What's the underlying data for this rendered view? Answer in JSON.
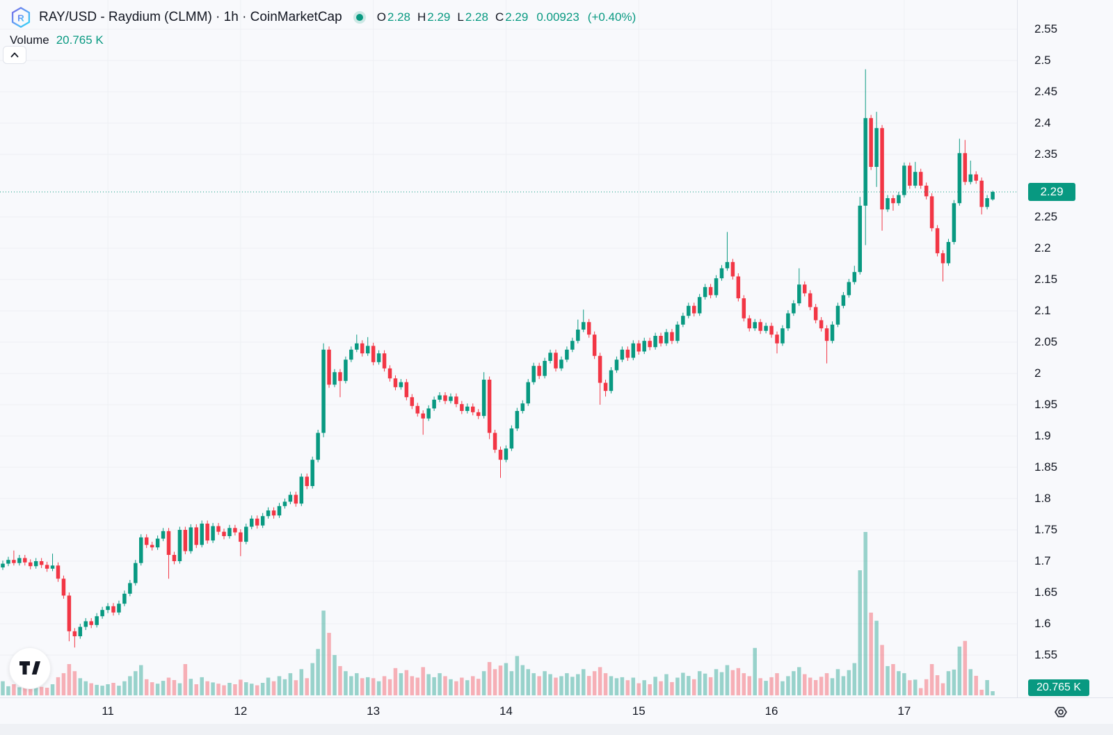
{
  "header": {
    "title": "RAY/USD - Raydium (CLMM) · 1h · CoinMarketCap",
    "ohlc": {
      "o_label": "O",
      "o_value": "2.28",
      "h_label": "H",
      "h_value": "2.29",
      "l_label": "L",
      "l_value": "2.28",
      "c_label": "C",
      "c_value": "2.29",
      "change_abs": "0.00923",
      "change_pct": "(+0.40%)"
    },
    "volume_label": "Volume",
    "volume_value": "20.765 K"
  },
  "price_axis": {
    "current_price_label": "2.29",
    "volume_badge_label": "20.765 K"
  },
  "chart_data": {
    "type": "candlestick",
    "symbol": "RAY/USD",
    "exchange": "Raydium (CLMM)",
    "interval": "1h",
    "source": "CoinMarketCap",
    "price_range": [
      1.55,
      2.55
    ],
    "current_price": 2.29,
    "grid": true,
    "colors": {
      "up": "#089981",
      "down": "#f23645",
      "volume_up": "rgba(8,153,129,0.40)",
      "volume_down": "rgba(242,54,69,0.38)",
      "badge": "#089981",
      "axis_text": "#131722"
    },
    "price_ticks": [
      {
        "label": "2.55",
        "value": 2.55
      },
      {
        "label": "2.5",
        "value": 2.5
      },
      {
        "label": "2.45",
        "value": 2.45
      },
      {
        "label": "2.4",
        "value": 2.4
      },
      {
        "label": "2.35",
        "value": 2.35
      },
      {
        "label": "2.25",
        "value": 2.25
      },
      {
        "label": "2.2",
        "value": 2.2
      },
      {
        "label": "2.15",
        "value": 2.15
      },
      {
        "label": "2.1",
        "value": 2.1
      },
      {
        "label": "2.05",
        "value": 2.05
      },
      {
        "label": "2",
        "value": 2.0
      },
      {
        "label": "1.95",
        "value": 1.95
      },
      {
        "label": "1.9",
        "value": 1.9
      },
      {
        "label": "1.85",
        "value": 1.85
      },
      {
        "label": "1.8",
        "value": 1.8
      },
      {
        "label": "1.75",
        "value": 1.75
      },
      {
        "label": "1.7",
        "value": 1.7
      },
      {
        "label": "1.65",
        "value": 1.65
      },
      {
        "label": "1.6",
        "value": 1.6
      },
      {
        "label": "1.55",
        "value": 1.55
      }
    ],
    "time_ticks": [
      {
        "label": "11",
        "index": 19
      },
      {
        "label": "12",
        "index": 43
      },
      {
        "label": "13",
        "index": 67
      },
      {
        "label": "14",
        "index": 91
      },
      {
        "label": "15",
        "index": 115
      },
      {
        "label": "16",
        "index": 139
      },
      {
        "label": "17",
        "index": 163
      }
    ],
    "volume_unit": "K",
    "last_bar_volume": 20.765,
    "candles_ohlcv": [
      [
        1.69,
        1.701,
        1.686,
        1.696,
        70
      ],
      [
        1.696,
        1.707,
        1.692,
        1.702,
        45
      ],
      [
        1.702,
        1.717,
        1.693,
        1.697,
        55
      ],
      [
        1.697,
        1.71,
        1.693,
        1.705,
        40
      ],
      [
        1.705,
        1.71,
        1.693,
        1.698,
        60
      ],
      [
        1.698,
        1.703,
        1.687,
        1.692,
        35
      ],
      [
        1.692,
        1.705,
        1.688,
        1.7,
        50
      ],
      [
        1.7,
        1.705,
        1.689,
        1.694,
        42
      ],
      [
        1.694,
        1.699,
        1.683,
        1.688,
        38
      ],
      [
        1.688,
        1.712,
        1.684,
        1.693,
        55
      ],
      [
        1.693,
        1.698,
        1.667,
        1.672,
        90
      ],
      [
        1.672,
        1.677,
        1.64,
        1.645,
        110
      ],
      [
        1.645,
        1.65,
        1.572,
        1.588,
        155
      ],
      [
        1.588,
        1.593,
        1.562,
        1.58,
        120
      ],
      [
        1.58,
        1.6,
        1.576,
        1.595,
        85
      ],
      [
        1.595,
        1.609,
        1.59,
        1.604,
        70
      ],
      [
        1.604,
        1.609,
        1.593,
        1.598,
        60
      ],
      [
        1.598,
        1.617,
        1.594,
        1.612,
        52
      ],
      [
        1.612,
        1.627,
        1.608,
        1.622,
        48
      ],
      [
        1.622,
        1.633,
        1.617,
        1.628,
        55
      ],
      [
        1.628,
        1.633,
        1.613,
        1.618,
        62
      ],
      [
        1.618,
        1.637,
        1.614,
        1.632,
        48
      ],
      [
        1.632,
        1.653,
        1.628,
        1.648,
        70
      ],
      [
        1.648,
        1.67,
        1.644,
        1.665,
        95
      ],
      [
        1.665,
        1.702,
        1.661,
        1.697,
        120
      ],
      [
        1.697,
        1.743,
        1.693,
        1.738,
        150
      ],
      [
        1.738,
        1.743,
        1.721,
        1.726,
        80
      ],
      [
        1.726,
        1.731,
        1.717,
        1.722,
        65
      ],
      [
        1.722,
        1.741,
        1.718,
        1.736,
        58
      ],
      [
        1.736,
        1.753,
        1.732,
        1.748,
        72
      ],
      [
        1.748,
        1.753,
        1.672,
        1.71,
        88
      ],
      [
        1.71,
        1.715,
        1.695,
        1.7,
        76
      ],
      [
        1.7,
        1.755,
        1.696,
        1.75,
        60
      ],
      [
        1.75,
        1.755,
        1.711,
        1.716,
        155
      ],
      [
        1.716,
        1.759,
        1.712,
        1.754,
        82
      ],
      [
        1.754,
        1.759,
        1.721,
        1.726,
        55
      ],
      [
        1.726,
        1.765,
        1.722,
        1.76,
        90
      ],
      [
        1.76,
        1.765,
        1.728,
        1.733,
        70
      ],
      [
        1.733,
        1.761,
        1.729,
        1.756,
        64
      ],
      [
        1.756,
        1.761,
        1.742,
        1.747,
        58
      ],
      [
        1.747,
        1.752,
        1.735,
        1.74,
        50
      ],
      [
        1.74,
        1.758,
        1.736,
        1.753,
        62
      ],
      [
        1.753,
        1.758,
        1.741,
        1.746,
        55
      ],
      [
        1.746,
        1.751,
        1.708,
        1.731,
        78
      ],
      [
        1.731,
        1.76,
        1.727,
        1.755,
        65
      ],
      [
        1.755,
        1.773,
        1.751,
        1.768,
        58
      ],
      [
        1.768,
        1.773,
        1.752,
        1.757,
        50
      ],
      [
        1.757,
        1.777,
        1.753,
        1.772,
        62
      ],
      [
        1.772,
        1.786,
        1.768,
        1.781,
        88
      ],
      [
        1.781,
        1.786,
        1.768,
        1.773,
        70
      ],
      [
        1.773,
        1.793,
        1.769,
        1.788,
        95
      ],
      [
        1.788,
        1.8,
        1.784,
        1.795,
        80
      ],
      [
        1.795,
        1.811,
        1.791,
        1.806,
        110
      ],
      [
        1.806,
        1.811,
        1.787,
        1.792,
        75
      ],
      [
        1.792,
        1.84,
        1.788,
        1.835,
        130
      ],
      [
        1.835,
        1.84,
        1.815,
        1.82,
        85
      ],
      [
        1.82,
        1.867,
        1.816,
        1.862,
        160
      ],
      [
        1.862,
        1.91,
        1.858,
        1.905,
        230
      ],
      [
        1.905,
        2.048,
        1.898,
        2.038,
        420
      ],
      [
        2.038,
        2.043,
        1.977,
        1.982,
        310
      ],
      [
        1.982,
        2.007,
        1.978,
        2.002,
        200
      ],
      [
        2.002,
        2.007,
        1.962,
        1.988,
        145
      ],
      [
        1.988,
        2.027,
        1.984,
        2.022,
        120
      ],
      [
        2.022,
        2.043,
        2.018,
        2.038,
        95
      ],
      [
        2.038,
        2.062,
        2.034,
        2.048,
        110
      ],
      [
        2.048,
        2.053,
        2.027,
        2.032,
        85
      ],
      [
        2.032,
        2.058,
        2.028,
        2.044,
        90
      ],
      [
        2.044,
        2.049,
        2.013,
        2.018,
        85
      ],
      [
        2.018,
        2.037,
        2.014,
        2.032,
        70
      ],
      [
        2.032,
        2.037,
        2.003,
        2.008,
        95
      ],
      [
        2.008,
        2.013,
        1.987,
        1.992,
        80
      ],
      [
        1.992,
        1.997,
        1.973,
        1.978,
        135
      ],
      [
        1.978,
        1.991,
        1.974,
        1.986,
        110
      ],
      [
        1.986,
        1.991,
        1.957,
        1.962,
        125
      ],
      [
        1.962,
        1.967,
        1.943,
        1.948,
        95
      ],
      [
        1.948,
        1.953,
        1.931,
        1.936,
        88
      ],
      [
        1.936,
        1.941,
        1.902,
        1.928,
        140
      ],
      [
        1.928,
        1.949,
        1.924,
        1.944,
        105
      ],
      [
        1.944,
        1.963,
        1.94,
        1.958,
        90
      ],
      [
        1.958,
        1.97,
        1.954,
        1.965,
        110
      ],
      [
        1.965,
        1.97,
        1.951,
        1.956,
        95
      ],
      [
        1.956,
        1.968,
        1.952,
        1.963,
        80
      ],
      [
        1.963,
        1.968,
        1.946,
        1.951,
        70
      ],
      [
        1.951,
        1.956,
        1.935,
        1.94,
        88
      ],
      [
        1.94,
        1.952,
        1.936,
        1.947,
        75
      ],
      [
        1.947,
        1.952,
        1.933,
        1.938,
        95
      ],
      [
        1.938,
        1.943,
        1.927,
        1.932,
        82
      ],
      [
        1.932,
        2.002,
        1.928,
        1.99,
        120
      ],
      [
        1.99,
        1.995,
        1.895,
        1.905,
        165
      ],
      [
        1.905,
        1.91,
        1.873,
        1.878,
        130
      ],
      [
        1.878,
        1.883,
        1.833,
        1.862,
        148
      ],
      [
        1.862,
        1.885,
        1.858,
        1.88,
        160
      ],
      [
        1.88,
        1.917,
        1.876,
        1.912,
        120
      ],
      [
        1.912,
        1.945,
        1.908,
        1.94,
        195
      ],
      [
        1.94,
        1.957,
        1.936,
        1.952,
        150
      ],
      [
        1.952,
        1.991,
        1.948,
        1.986,
        130
      ],
      [
        1.986,
        2.017,
        1.982,
        2.012,
        110
      ],
      [
        2.012,
        2.017,
        1.991,
        1.996,
        95
      ],
      [
        1.996,
        2.025,
        1.992,
        2.02,
        120
      ],
      [
        2.02,
        2.038,
        2.016,
        2.033,
        105
      ],
      [
        2.033,
        2.038,
        2.003,
        2.008,
        88
      ],
      [
        2.008,
        2.027,
        2.004,
        2.022,
        95
      ],
      [
        2.022,
        2.043,
        2.018,
        2.038,
        110
      ],
      [
        2.038,
        2.057,
        2.034,
        2.052,
        92
      ],
      [
        2.052,
        2.086,
        2.048,
        2.07,
        105
      ],
      [
        2.07,
        2.102,
        2.066,
        2.082,
        130
      ],
      [
        2.082,
        2.087,
        2.057,
        2.062,
        96
      ],
      [
        2.062,
        2.067,
        2.023,
        2.028,
        120
      ],
      [
        2.028,
        2.033,
        1.95,
        1.985,
        140
      ],
      [
        1.985,
        1.99,
        1.963,
        1.972,
        110
      ],
      [
        1.972,
        2.01,
        1.968,
        2.005,
        95
      ],
      [
        2.005,
        2.027,
        2.001,
        2.022,
        85
      ],
      [
        2.022,
        2.043,
        2.018,
        2.038,
        90
      ],
      [
        2.038,
        2.043,
        2.02,
        2.025,
        75
      ],
      [
        2.025,
        2.053,
        2.021,
        2.048,
        88
      ],
      [
        2.048,
        2.053,
        2.03,
        2.035,
        60
      ],
      [
        2.035,
        2.057,
        2.031,
        2.052,
        75
      ],
      [
        2.052,
        2.057,
        2.037,
        2.042,
        55
      ],
      [
        2.042,
        2.065,
        2.038,
        2.06,
        92
      ],
      [
        2.06,
        2.065,
        2.043,
        2.048,
        70
      ],
      [
        2.048,
        2.071,
        2.044,
        2.066,
        105
      ],
      [
        2.066,
        2.071,
        2.047,
        2.052,
        66
      ],
      [
        2.052,
        2.083,
        2.048,
        2.078,
        88
      ],
      [
        2.078,
        2.097,
        2.074,
        2.092,
        112
      ],
      [
        2.092,
        2.113,
        2.088,
        2.108,
        96
      ],
      [
        2.108,
        2.113,
        2.091,
        2.096,
        80
      ],
      [
        2.096,
        2.127,
        2.092,
        2.122,
        120
      ],
      [
        2.122,
        2.143,
        2.118,
        2.138,
        108
      ],
      [
        2.138,
        2.143,
        2.12,
        2.125,
        90
      ],
      [
        2.125,
        2.157,
        2.121,
        2.152,
        130
      ],
      [
        2.152,
        2.173,
        2.148,
        2.168,
        115
      ],
      [
        2.168,
        2.226,
        2.164,
        2.178,
        150
      ],
      [
        2.178,
        2.183,
        2.15,
        2.155,
        125
      ],
      [
        2.155,
        2.16,
        2.115,
        2.12,
        135
      ],
      [
        2.12,
        2.125,
        2.083,
        2.088,
        110
      ],
      [
        2.088,
        2.093,
        2.067,
        2.072,
        95
      ],
      [
        2.072,
        2.087,
        2.068,
        2.082,
        235
      ],
      [
        2.082,
        2.087,
        2.063,
        2.068,
        85
      ],
      [
        2.068,
        2.081,
        2.064,
        2.076,
        72
      ],
      [
        2.076,
        2.081,
        2.057,
        2.062,
        90
      ],
      [
        2.062,
        2.067,
        2.032,
        2.048,
        110
      ],
      [
        2.048,
        2.077,
        2.044,
        2.072,
        70
      ],
      [
        2.072,
        2.101,
        2.068,
        2.096,
        95
      ],
      [
        2.096,
        2.117,
        2.092,
        2.112,
        120
      ],
      [
        2.112,
        2.168,
        2.108,
        2.142,
        140
      ],
      [
        2.142,
        2.147,
        2.123,
        2.128,
        105
      ],
      [
        2.128,
        2.133,
        2.101,
        2.106,
        88
      ],
      [
        2.106,
        2.111,
        2.08,
        2.085,
        76
      ],
      [
        2.085,
        2.09,
        2.067,
        2.072,
        92
      ],
      [
        2.072,
        2.077,
        2.016,
        2.052,
        110
      ],
      [
        2.052,
        2.083,
        2.048,
        2.078,
        85
      ],
      [
        2.078,
        2.113,
        2.074,
        2.108,
        130
      ],
      [
        2.108,
        2.13,
        2.104,
        2.125,
        95
      ],
      [
        2.125,
        2.151,
        2.121,
        2.146,
        125
      ],
      [
        2.146,
        2.172,
        2.142,
        2.162,
        160
      ],
      [
        2.162,
        2.282,
        2.158,
        2.268,
        620
      ],
      [
        2.268,
        2.486,
        2.205,
        2.408,
        810
      ],
      [
        2.408,
        2.413,
        2.325,
        2.33,
        410
      ],
      [
        2.33,
        2.418,
        2.298,
        2.392,
        370
      ],
      [
        2.392,
        2.397,
        2.228,
        2.262,
        250
      ],
      [
        2.262,
        2.285,
        2.258,
        2.28,
        145
      ],
      [
        2.28,
        2.285,
        2.26,
        2.272,
        155
      ],
      [
        2.272,
        2.29,
        2.268,
        2.285,
        120
      ],
      [
        2.285,
        2.337,
        2.281,
        2.332,
        110
      ],
      [
        2.332,
        2.337,
        2.295,
        2.3,
        75
      ],
      [
        2.3,
        2.338,
        2.296,
        2.322,
        78
      ],
      [
        2.322,
        2.327,
        2.295,
        2.3,
        36
      ],
      [
        2.3,
        2.305,
        2.278,
        2.283,
        80
      ],
      [
        2.283,
        2.288,
        2.227,
        2.232,
        155
      ],
      [
        2.232,
        2.237,
        2.187,
        2.192,
        100
      ],
      [
        2.192,
        2.197,
        2.147,
        2.176,
        60
      ],
      [
        2.176,
        2.215,
        2.172,
        2.21,
        120
      ],
      [
        2.21,
        2.277,
        2.206,
        2.272,
        128
      ],
      [
        2.272,
        2.375,
        2.268,
        2.352,
        242
      ],
      [
        2.352,
        2.373,
        2.301,
        2.306,
        270
      ],
      [
        2.306,
        2.34,
        2.302,
        2.318,
        130
      ],
      [
        2.318,
        2.323,
        2.303,
        2.308,
        97
      ],
      [
        2.308,
        2.313,
        2.254,
        2.266,
        28
      ],
      [
        2.266,
        2.285,
        2.262,
        2.28,
        76
      ],
      [
        2.278,
        2.292,
        2.276,
        2.29,
        20.765
      ]
    ]
  }
}
